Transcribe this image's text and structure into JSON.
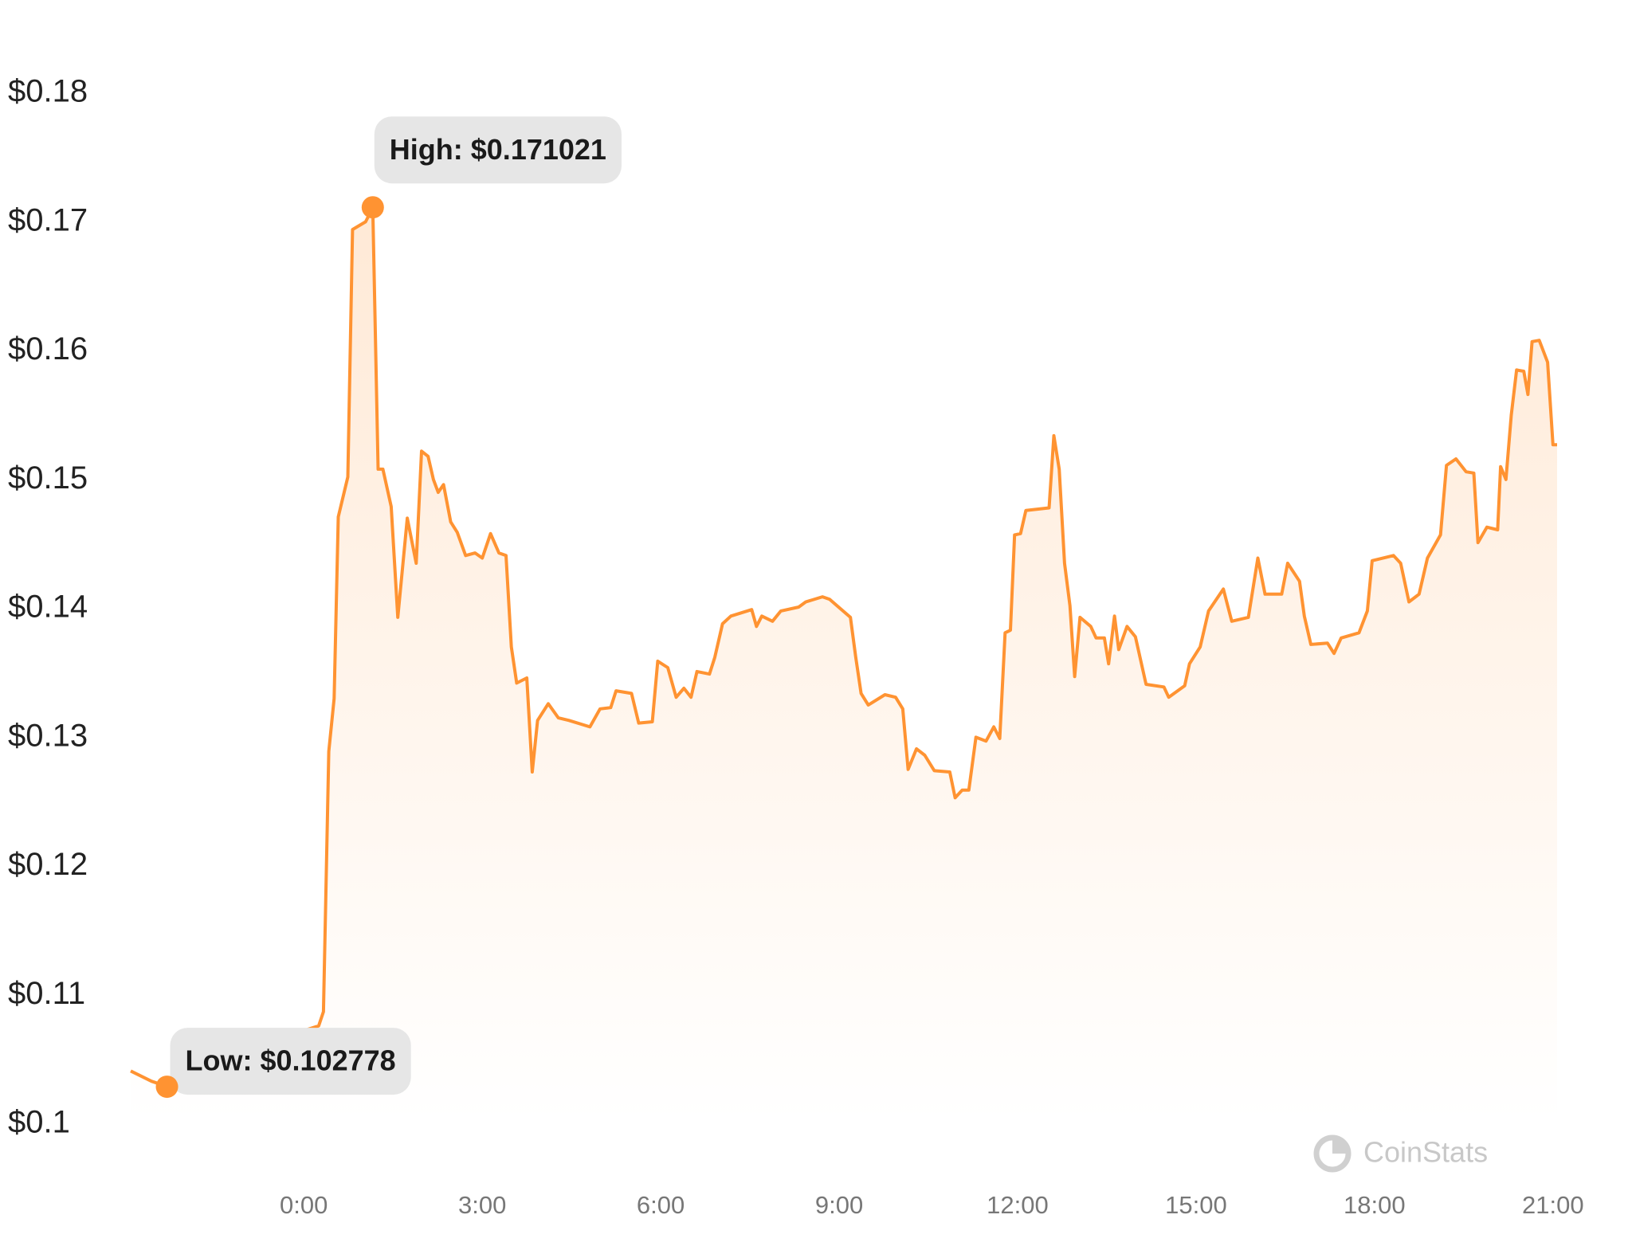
{
  "chart_data": {
    "type": "line",
    "color": "#ff9332",
    "watermark": "CoinStats",
    "xlim": [
      -2.91,
      21.07
    ],
    "xticks": [
      {
        "value": 0,
        "label": "0:00"
      },
      {
        "value": 3,
        "label": "3:00"
      },
      {
        "value": 6,
        "label": "6:00"
      },
      {
        "value": 9,
        "label": "9:00"
      },
      {
        "value": 12,
        "label": "12:00"
      },
      {
        "value": 15,
        "label": "15:00"
      },
      {
        "value": 18,
        "label": "18:00"
      },
      {
        "value": 21,
        "label": "21:00"
      }
    ],
    "ylim": [
      0.1,
      0.18
    ],
    "yticks": [
      {
        "value": 0.1,
        "label": "$0.1"
      },
      {
        "value": 0.11,
        "label": "$0.11"
      },
      {
        "value": 0.12,
        "label": "$0.12"
      },
      {
        "value": 0.13,
        "label": "$0.13"
      },
      {
        "value": 0.14,
        "label": "$0.14"
      },
      {
        "value": 0.15,
        "label": "$0.15"
      },
      {
        "value": 0.16,
        "label": "$0.16"
      },
      {
        "value": 0.17,
        "label": "$0.17"
      },
      {
        "value": 0.18,
        "label": "$0.18"
      }
    ],
    "x": [
      -2.91,
      -2.56,
      -2.3,
      -0.02,
      0.25,
      0.33,
      0.42,
      0.51,
      0.58,
      0.74,
      0.82,
      1.04,
      1.16,
      1.25,
      1.33,
      1.47,
      1.58,
      1.74,
      1.89,
      1.98,
      2.09,
      2.18,
      2.26,
      2.35,
      2.47,
      2.58,
      2.72,
      2.88,
      3.0,
      3.14,
      3.28,
      3.4,
      3.49,
      3.58,
      3.75,
      3.84,
      3.93,
      4.11,
      4.28,
      4.46,
      4.81,
      4.98,
      5.16,
      5.25,
      5.51,
      5.63,
      5.86,
      5.95,
      6.12,
      6.26,
      6.39,
      6.51,
      6.61,
      6.82,
      6.91,
      7.04,
      7.18,
      7.53,
      7.61,
      7.7,
      7.88,
      8.02,
      8.32,
      8.44,
      8.72,
      8.84,
      9.19,
      9.28,
      9.37,
      9.49,
      9.77,
      9.95,
      10.07,
      10.16,
      10.3,
      10.44,
      10.6,
      10.86,
      10.95,
      11.07,
      11.18,
      11.3,
      11.47,
      11.6,
      11.7,
      11.79,
      11.88,
      11.95,
      12.05,
      12.14,
      12.53,
      12.61,
      12.7,
      12.79,
      12.88,
      12.96,
      13.05,
      13.23,
      13.32,
      13.46,
      13.53,
      13.63,
      13.7,
      13.84,
      13.98,
      14.16,
      14.46,
      14.54,
      14.81,
      14.89,
      15.07,
      15.21,
      15.46,
      15.6,
      15.88,
      16.04,
      16.16,
      16.44,
      16.54,
      16.74,
      16.82,
      16.93,
      17.21,
      17.32,
      17.44,
      17.74,
      17.88,
      17.96,
      18.32,
      18.44,
      18.58,
      18.75,
      18.89,
      19.11,
      19.21,
      19.37,
      19.54,
      19.67,
      19.74,
      19.89,
      20.07,
      20.12,
      20.21,
      20.3,
      20.39,
      20.51,
      20.58,
      20.65,
      20.77,
      20.91,
      21.0,
      21.07
    ],
    "values": [
      0.104,
      0.1032,
      0.1028,
      0.1071,
      0.1075,
      0.1086,
      0.1288,
      0.1329,
      0.147,
      0.1501,
      0.1693,
      0.1699,
      0.171,
      0.1507,
      0.1507,
      0.1478,
      0.1392,
      0.1469,
      0.1434,
      0.1521,
      0.1517,
      0.1499,
      0.1489,
      0.1495,
      0.1466,
      0.1458,
      0.144,
      0.1442,
      0.1438,
      0.1457,
      0.1442,
      0.144,
      0.1369,
      0.1341,
      0.1345,
      0.1272,
      0.1312,
      0.1325,
      0.1314,
      0.1312,
      0.1307,
      0.1321,
      0.1322,
      0.1335,
      0.1333,
      0.131,
      0.1311,
      0.1358,
      0.1353,
      0.133,
      0.1337,
      0.133,
      0.135,
      0.1348,
      0.1361,
      0.1387,
      0.1393,
      0.1398,
      0.1385,
      0.1393,
      0.1389,
      0.1397,
      0.14,
      0.1404,
      0.1408,
      0.1406,
      0.1392,
      0.1361,
      0.1333,
      0.1324,
      0.1332,
      0.133,
      0.1321,
      0.1274,
      0.129,
      0.1285,
      0.1273,
      0.1272,
      0.1252,
      0.1258,
      0.1258,
      0.1299,
      0.1296,
      0.1307,
      0.1298,
      0.138,
      0.1382,
      0.1456,
      0.1457,
      0.1475,
      0.1477,
      0.1533,
      0.1507,
      0.1434,
      0.1401,
      0.1346,
      0.1392,
      0.1385,
      0.1376,
      0.1376,
      0.1356,
      0.1393,
      0.1367,
      0.1385,
      0.1377,
      0.134,
      0.1338,
      0.133,
      0.1339,
      0.1356,
      0.1369,
      0.1397,
      0.1414,
      0.1389,
      0.1392,
      0.1438,
      0.141,
      0.141,
      0.1434,
      0.142,
      0.1393,
      0.1371,
      0.1372,
      0.1364,
      0.1376,
      0.138,
      0.1397,
      0.1436,
      0.144,
      0.1434,
      0.1404,
      0.141,
      0.1438,
      0.1456,
      0.151,
      0.1515,
      0.1505,
      0.1504,
      0.145,
      0.1462,
      0.146,
      0.1509,
      0.1499,
      0.1549,
      0.1584,
      0.1583,
      0.1565,
      0.1606,
      0.1607,
      0.159,
      0.1526,
      0.1526
    ],
    "annotations": [
      {
        "label": "High: $0.171021",
        "x": 1.16,
        "value": 0.171021
      },
      {
        "label": "Low: $0.102778",
        "x": -2.3,
        "value": 0.102778
      }
    ]
  }
}
